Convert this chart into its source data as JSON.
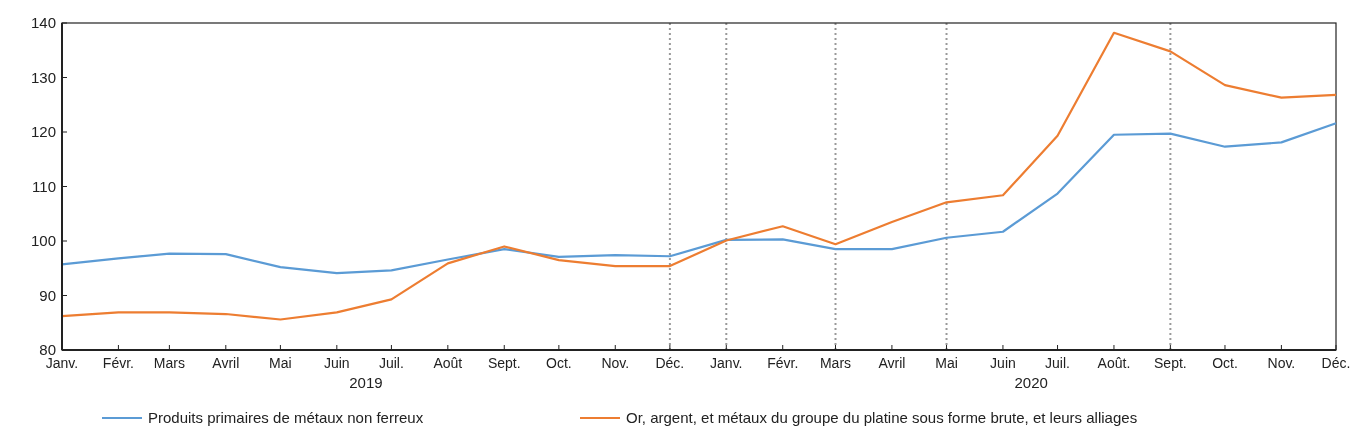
{
  "chart_data": {
    "type": "line",
    "x": [
      "2019-01",
      "2019-02",
      "2019-03",
      "2019-04",
      "2019-05",
      "2019-06",
      "2019-07",
      "2019-08",
      "2019-09",
      "2019-10",
      "2019-11",
      "2019-12",
      "2020-01",
      "2020-02",
      "2020-03",
      "2020-04",
      "2020-05",
      "2020-06",
      "2020-07",
      "2020-08",
      "2020-09",
      "2020-10",
      "2020-11",
      "2020-12"
    ],
    "series": [
      {
        "name": "Produits primaires de métaux non ferreux",
        "color": "#5b9bd5",
        "values": [
          95.7,
          96.8,
          97.7,
          97.6,
          95.2,
          94.1,
          94.6,
          96.6,
          98.5,
          97.1,
          97.4,
          97.2,
          100.2,
          100.3,
          98.5,
          98.5,
          100.6,
          101.7,
          108.7,
          119.5,
          119.7,
          117.3,
          118.1,
          121.6
        ]
      },
      {
        "name": "Or, argent, et métaux du groupe du platine sous forme brute, et leurs alliages",
        "color": "#ed7d31",
        "values": [
          86.2,
          86.9,
          86.9,
          86.6,
          85.6,
          86.9,
          89.3,
          95.9,
          99.0,
          96.5,
          95.4,
          95.4,
          100.1,
          102.7,
          99.4,
          103.5,
          107.1,
          108.4,
          119.3,
          138.2,
          134.8,
          128.6,
          126.3,
          126.8
        ]
      }
    ],
    "xlim": [
      "2019-01",
      "2020-12"
    ],
    "xticks": [
      {
        "value": "2019-01",
        "label": "Janv."
      },
      {
        "value": "2019-02",
        "label": "Févr."
      },
      {
        "value": "2019-03",
        "label": "Mars"
      },
      {
        "value": "2019-04",
        "label": "Avril"
      },
      {
        "value": "2019-05",
        "label": "Mai"
      },
      {
        "value": "2019-06",
        "label": "Juin"
      },
      {
        "value": "2019-07",
        "label": "Juil."
      },
      {
        "value": "2019-08",
        "label": "Août"
      },
      {
        "value": "2019-09",
        "label": "Sept."
      },
      {
        "value": "2019-10",
        "label": "Oct."
      },
      {
        "value": "2019-11",
        "label": "Nov."
      },
      {
        "value": "2019-12",
        "label": "Déc."
      },
      {
        "value": "2020-01",
        "label": "Janv."
      },
      {
        "value": "2020-02",
        "label": "Févr."
      },
      {
        "value": "2020-03",
        "label": "Mars"
      },
      {
        "value": "2020-04",
        "label": "Avril"
      },
      {
        "value": "2020-05",
        "label": "Mai"
      },
      {
        "value": "2020-06",
        "label": "Juin"
      },
      {
        "value": "2020-07",
        "label": "Juil."
      },
      {
        "value": "2020-08",
        "label": "Août."
      },
      {
        "value": "2020-09",
        "label": "Sept."
      },
      {
        "value": "2020-10",
        "label": "Oct."
      },
      {
        "value": "2020-11",
        "label": "Nov."
      },
      {
        "value": "2020-12",
        "label": "Déc."
      }
    ],
    "ylim": [
      80,
      140
    ],
    "yticks": [
      80,
      90,
      100,
      110,
      120,
      130,
      140
    ],
    "annotations": [
      "2019",
      "2020"
    ],
    "ref_lines": [
      {
        "axis": "x",
        "value": "2019-12",
        "color": "#999999",
        "line_style": "dotted"
      },
      {
        "axis": "x",
        "value": "2020-01",
        "color": "#999999",
        "line_style": "dotted"
      },
      {
        "axis": "x",
        "value": "2020-03",
        "color": "#999999",
        "line_style": "dotted"
      },
      {
        "axis": "x",
        "value": "2020-05",
        "color": "#999999",
        "line_style": "dotted"
      },
      {
        "axis": "x",
        "value": "2020-09",
        "color": "#999999",
        "line_style": "dotted"
      }
    ],
    "grid": false,
    "legend": "bottom",
    "line_style": "solid",
    "marker": "none"
  }
}
